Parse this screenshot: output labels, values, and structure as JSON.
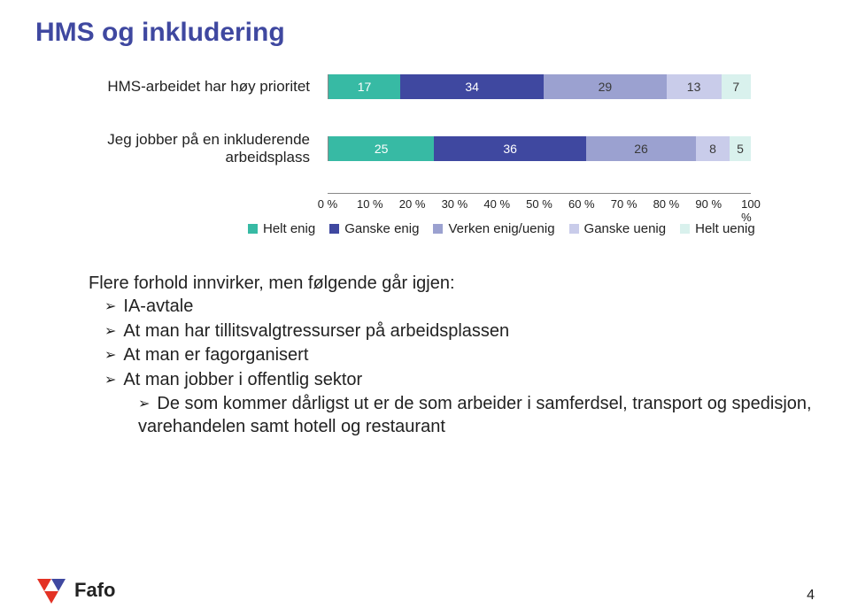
{
  "title": "HMS og inkludering",
  "chart": {
    "type": "stacked-bar-horizontal",
    "x_ticks": [
      "0 %",
      "10 %",
      "20 %",
      "30 %",
      "40 %",
      "50 %",
      "60 %",
      "70 %",
      "80 %",
      "90 %",
      "100 %"
    ],
    "bars": [
      {
        "label": "HMS-arbeidet har høy prioritet",
        "segments": [
          {
            "value": 17,
            "color": "#37baa4",
            "text_color": "#ffffff"
          },
          {
            "value": 34,
            "color": "#3f48a0",
            "text_color": "#ffffff"
          },
          {
            "value": 29,
            "color": "#9ba1d0",
            "text_color": "#3a3a3a"
          },
          {
            "value": 13,
            "color": "#c9ccea",
            "text_color": "#3a3a3a"
          },
          {
            "value": 7,
            "color": "#d9f1ed",
            "text_color": "#3a3a3a"
          }
        ]
      },
      {
        "label": "Jeg jobber på en inkluderende arbeidsplass",
        "segments": [
          {
            "value": 25,
            "color": "#37baa4",
            "text_color": "#ffffff"
          },
          {
            "value": 36,
            "color": "#3f48a0",
            "text_color": "#ffffff"
          },
          {
            "value": 26,
            "color": "#9ba1d0",
            "text_color": "#3a3a3a"
          },
          {
            "value": 8,
            "color": "#c9ccea",
            "text_color": "#3a3a3a"
          },
          {
            "value": 5,
            "color": "#d9f1ed",
            "text_color": "#3a3a3a"
          }
        ]
      }
    ],
    "legend": [
      {
        "label": "Helt enig",
        "color": "#37baa4"
      },
      {
        "label": "Ganske enig",
        "color": "#3f48a0"
      },
      {
        "label": "Verken enig/uenig",
        "color": "#9ba1d0"
      },
      {
        "label": "Ganske uenig",
        "color": "#c9ccea"
      },
      {
        "label": "Helt uenig",
        "color": "#d9f1ed"
      }
    ]
  },
  "body": {
    "lead": "Flere forhold innvirker, men følgende går igjen:",
    "bullets": [
      "IA-avtale",
      "At man har tillitsvalgtressurser på arbeidsplassen",
      "At man er fagorganisert",
      "At man jobber i offentlig sektor"
    ],
    "sub_bullet": "De som kommer dårligst ut er de som arbeider i samferdsel, transport og spedisjon, varehandelen samt hotell og restaurant"
  },
  "footer": {
    "logo_text": "Fafo",
    "page_number": "4",
    "logo_colors": {
      "red": "#e33225",
      "blue": "#3f48a0"
    }
  }
}
